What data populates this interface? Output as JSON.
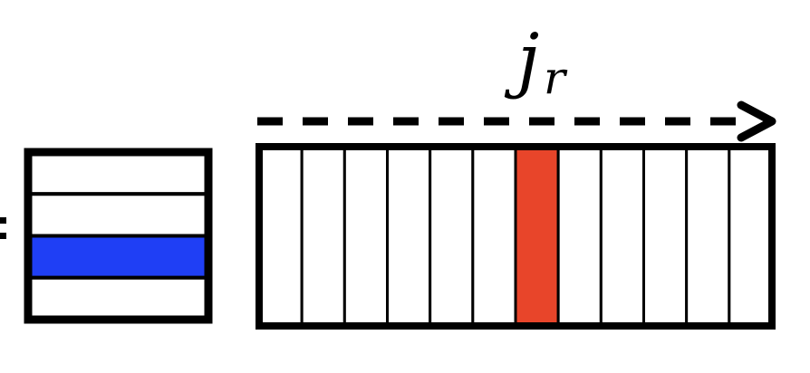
{
  "label": {
    "main": "j",
    "subscript": "r"
  },
  "left_matrix": {
    "rows": 4,
    "highlighted_row_index": 2
  },
  "right_matrix": {
    "columns": 12,
    "highlighted_column_index": 6
  },
  "colors": {
    "outline": "#000000",
    "row_highlight": "#1f3ff5",
    "column_highlight": "#e8452a",
    "background": "#ffffff"
  }
}
